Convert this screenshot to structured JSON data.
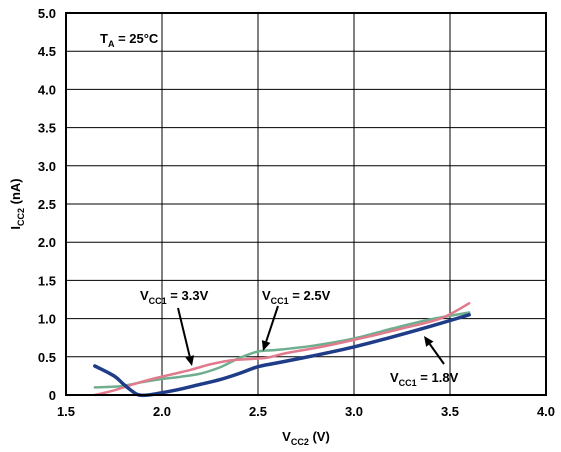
{
  "chart_data": {
    "type": "line",
    "title": "",
    "xlabel": {
      "main": "V",
      "sub": "CC2",
      "tail": " (V)"
    },
    "ylabel": {
      "main": "I",
      "sub": "CC2",
      "tail": " (nA)"
    },
    "xlim": [
      1.5,
      4.0
    ],
    "ylim": [
      0,
      5.0
    ],
    "x_ticks": [
      "1.5",
      "2.0",
      "2.5",
      "3.0",
      "3.5",
      "4.0"
    ],
    "y_ticks": [
      "0",
      "0.5",
      "1.0",
      "1.5",
      "2.0",
      "2.5",
      "3.0",
      "3.5",
      "4.0",
      "4.5",
      "5.0"
    ],
    "grid": true,
    "condition": {
      "main": "T",
      "sub": "A",
      "tail": " = 25°C"
    },
    "series": [
      {
        "name": "VCC1 = 1.8V",
        "label": {
          "main": "V",
          "sub": "CC1",
          "tail": " = 1.8V"
        },
        "color": "#1f3c88",
        "x": [
          1.65,
          1.75,
          1.8,
          1.85,
          1.88,
          1.93,
          2.0,
          2.1,
          2.2,
          2.3,
          2.4,
          2.5,
          2.6,
          2.8,
          3.0,
          3.2,
          3.4,
          3.6
        ],
        "y": [
          0.38,
          0.25,
          0.14,
          0.04,
          0.0,
          0.0,
          0.03,
          0.08,
          0.14,
          0.2,
          0.28,
          0.37,
          0.42,
          0.52,
          0.63,
          0.76,
          0.9,
          1.05
        ]
      },
      {
        "name": "VCC1 = 2.5V",
        "label": {
          "main": "V",
          "sub": "CC1",
          "tail": " = 2.5V"
        },
        "color": "#6fae8f",
        "x": [
          1.65,
          1.75,
          1.8,
          1.9,
          2.0,
          2.1,
          2.2,
          2.3,
          2.4,
          2.5,
          2.6,
          2.8,
          3.0,
          3.2,
          3.4,
          3.6
        ],
        "y": [
          0.1,
          0.11,
          0.12,
          0.17,
          0.21,
          0.24,
          0.28,
          0.36,
          0.48,
          0.57,
          0.59,
          0.65,
          0.74,
          0.87,
          0.99,
          1.08
        ]
      },
      {
        "name": "VCC1 = 3.3V",
        "label": {
          "main": "V",
          "sub": "CC1",
          "tail": " = 3.3V"
        },
        "color": "#e07a8c",
        "x": [
          1.65,
          1.75,
          1.85,
          1.95,
          2.05,
          2.15,
          2.25,
          2.35,
          2.45,
          2.55,
          2.65,
          2.85,
          3.05,
          3.25,
          3.45,
          3.6
        ],
        "y": [
          0.0,
          0.06,
          0.14,
          0.21,
          0.27,
          0.33,
          0.4,
          0.45,
          0.47,
          0.49,
          0.55,
          0.64,
          0.75,
          0.87,
          1.0,
          1.2
        ]
      }
    ]
  }
}
